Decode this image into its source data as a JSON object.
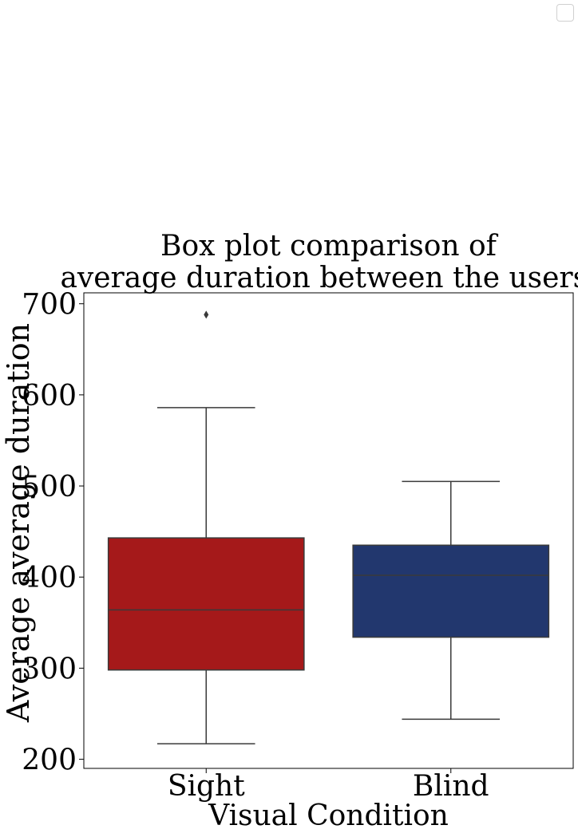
{
  "chart_data": {
    "type": "box",
    "title": [
      "Box plot comparison of",
      "average duration between the users."
    ],
    "xlabel": "Visual Condition",
    "ylabel": "Average average duration",
    "ylim": [
      190,
      712
    ],
    "yticks": [
      200,
      300,
      400,
      500,
      600,
      700
    ],
    "categories": [
      "Sight",
      "Blind"
    ],
    "boxes": [
      {
        "category": "Sight",
        "whisker_low": 217,
        "q1": 298,
        "median": 364,
        "q3": 443,
        "whisker_high": 586,
        "outliers": [
          688
        ],
        "color": "#a5191a"
      },
      {
        "category": "Blind",
        "whisker_low": 244,
        "q1": 334,
        "median": 402,
        "q3": 435,
        "whisker_high": 505,
        "outliers": [],
        "color": "#22376e"
      }
    ],
    "grid": false,
    "legend": "top-right, empty"
  }
}
